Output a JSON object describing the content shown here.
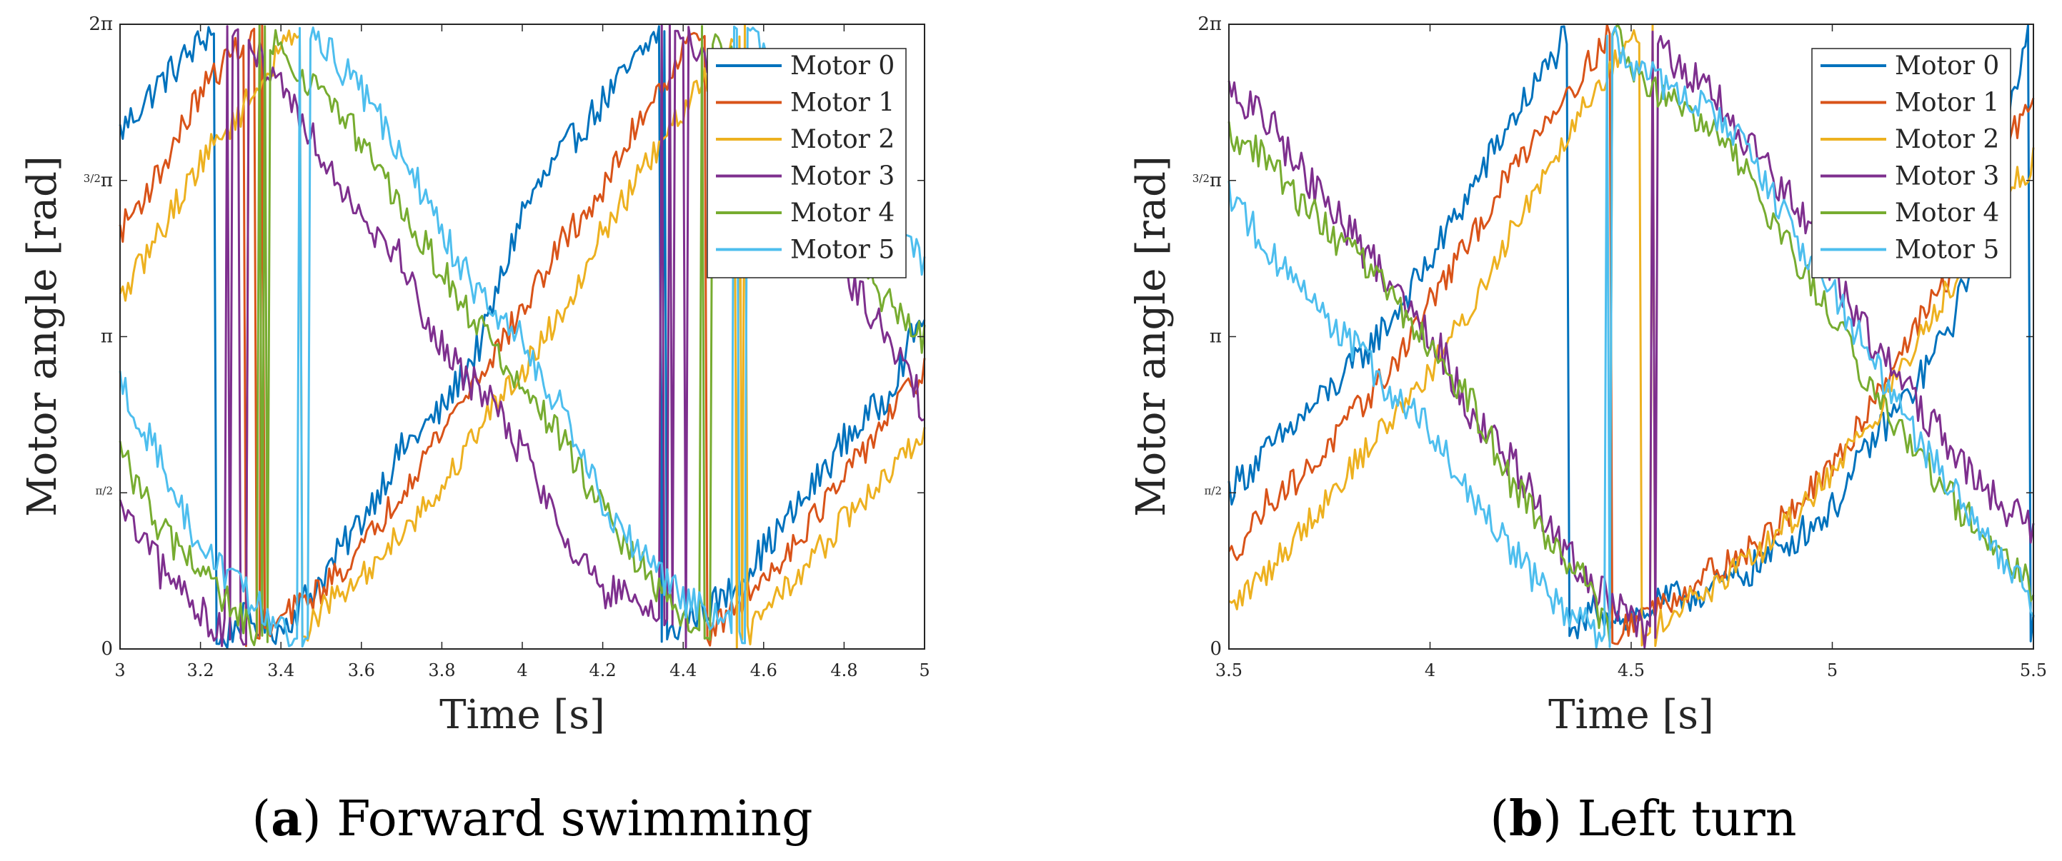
{
  "chart_data": [
    {
      "type": "line",
      "caption_letter": "a",
      "caption_text": "Forward swimming",
      "xlabel": "Time [s]",
      "ylabel": "Motor angle [rad]",
      "xlim": [
        3,
        5
      ],
      "ylim": [
        0,
        6.2832
      ],
      "x_ticks": [
        3,
        3.2,
        3.4,
        3.6,
        3.8,
        4,
        4.2,
        4.4,
        4.6,
        4.8,
        5
      ],
      "x_tick_labels": [
        "3",
        "3.2",
        "3.4",
        "3.6",
        "3.8",
        "4",
        "4.2",
        "4.4",
        "4.6",
        "4.8",
        "5"
      ],
      "y_ticks": [
        {
          "value": 0,
          "label": "0"
        },
        {
          "value": 1.5708,
          "label": "π/2"
        },
        {
          "value": 3.1416,
          "label": "π"
        },
        {
          "value": 4.7124,
          "label": "3/2π"
        },
        {
          "value": 6.2832,
          "label": "2π"
        }
      ],
      "legend_position": "top-right",
      "series": [
        {
          "name": "Motor 0",
          "color": "#0072BD",
          "phase": 2.0,
          "noise": 0.35,
          "x": [
            3.0,
            3.1,
            3.2,
            3.3,
            3.4,
            3.5,
            3.6,
            3.7,
            3.8,
            3.9,
            4.0,
            4.1,
            4.2,
            4.3,
            4.4,
            4.5,
            4.6,
            4.7,
            4.8,
            4.9,
            5.0
          ],
          "y": [
            5.2,
            5.7,
            6.1,
            0.3,
            0.2,
            0.7,
            1.3,
            2.0,
            2.4,
            3.1,
            4.4,
            5.0,
            5.5,
            6.0,
            0.3,
            0.5,
            1.0,
            1.5,
            2.1,
            2.5,
            3.4
          ]
        },
        {
          "name": "Motor 1",
          "color": "#D95319",
          "phase": 1.6,
          "noise": 0.3,
          "x": [
            3.0,
            3.1,
            3.2,
            3.3,
            3.4,
            3.5,
            3.6,
            3.7,
            3.8,
            3.9,
            4.0,
            4.1,
            4.2,
            4.3,
            4.4,
            4.5,
            4.6,
            4.7,
            4.8,
            4.9,
            5.0
          ],
          "y": [
            4.2,
            4.8,
            5.6,
            6.1,
            0.3,
            0.6,
            1.0,
            1.6,
            2.2,
            2.8,
            3.4,
            4.1,
            4.6,
            5.4,
            6.0,
            0.3,
            0.7,
            1.2,
            1.7,
            2.3,
            2.8
          ]
        },
        {
          "name": "Motor 2",
          "color": "#EDB120",
          "phase": 1.2,
          "noise": 0.3,
          "x": [
            3.0,
            3.1,
            3.2,
            3.3,
            3.4,
            3.5,
            3.6,
            3.7,
            3.8,
            3.9,
            4.0,
            4.1,
            4.2,
            4.3,
            4.4,
            4.5,
            4.6,
            4.7,
            4.8,
            4.9,
            5.0
          ],
          "y": [
            3.5,
            4.2,
            4.9,
            5.4,
            6.0,
            0.4,
            0.7,
            1.2,
            1.6,
            2.3,
            2.8,
            3.4,
            4.2,
            4.8,
            5.4,
            6.0,
            0.4,
            0.8,
            1.3,
            1.7,
            2.2
          ]
        },
        {
          "name": "Motor 3",
          "color": "#7E2F8E",
          "phase": -1.0,
          "noise": 0.4,
          "x": [
            3.0,
            3.1,
            3.2,
            3.3,
            3.4,
            3.5,
            3.6,
            3.7,
            3.8,
            3.9,
            4.0,
            4.1,
            4.2,
            4.3,
            4.4,
            4.5,
            4.6,
            4.7,
            4.8,
            4.9,
            5.0
          ],
          "y": [
            1.4,
            0.8,
            0.4,
            6.2,
            5.7,
            5.0,
            4.4,
            3.9,
            3.0,
            2.6,
            2.0,
            1.2,
            0.6,
            0.4,
            6.2,
            5.6,
            5.0,
            4.4,
            3.8,
            3.2,
            2.4
          ]
        },
        {
          "name": "Motor 4",
          "color": "#77AC30",
          "phase": -0.5,
          "noise": 0.35,
          "x": [
            3.0,
            3.1,
            3.2,
            3.3,
            3.4,
            3.5,
            3.6,
            3.7,
            3.8,
            3.9,
            4.0,
            4.1,
            4.2,
            4.3,
            4.4,
            4.5,
            4.6,
            4.7,
            4.8,
            4.9,
            5.0
          ],
          "y": [
            2.0,
            1.2,
            0.8,
            0.3,
            6.0,
            5.6,
            5.1,
            4.4,
            3.8,
            3.2,
            2.6,
            2.1,
            1.4,
            0.8,
            0.3,
            6.1,
            5.4,
            4.8,
            4.2,
            3.5,
            3.1
          ]
        },
        {
          "name": "Motor 5",
          "color": "#4DBEEE",
          "phase": 0.0,
          "noise": 0.35,
          "x": [
            3.0,
            3.1,
            3.2,
            3.3,
            3.4,
            3.5,
            3.6,
            3.7,
            3.8,
            3.9,
            4.0,
            4.1,
            4.2,
            4.3,
            4.4,
            4.5,
            4.6,
            4.7,
            4.8,
            4.9,
            5.0
          ],
          "y": [
            2.7,
            1.9,
            1.0,
            0.6,
            0.2,
            6.1,
            5.6,
            5.0,
            4.2,
            3.5,
            3.1,
            2.4,
            1.5,
            0.9,
            0.5,
            0.3,
            6.0,
            5.5,
            4.8,
            4.3,
            3.9
          ]
        }
      ]
    },
    {
      "type": "line",
      "caption_letter": "b",
      "caption_text": "Left turn",
      "xlabel": "Time [s]",
      "ylabel": "Motor angle [rad]",
      "xlim": [
        3.5,
        5.5
      ],
      "ylim": [
        0,
        6.2832
      ],
      "x_ticks": [
        3.5,
        4,
        4.5,
        5,
        5.5
      ],
      "x_tick_labels": [
        "3.5",
        "4",
        "4.5",
        "5",
        "5.5"
      ],
      "y_ticks": [
        {
          "value": 0,
          "label": "0"
        },
        {
          "value": 1.5708,
          "label": "π/2"
        },
        {
          "value": 3.1416,
          "label": "π"
        },
        {
          "value": 4.7124,
          "label": "3/2π"
        },
        {
          "value": 6.2832,
          "label": "2π"
        }
      ],
      "legend_position": "top-right",
      "series": [
        {
          "name": "Motor 0",
          "color": "#0072BD",
          "phase": 2.0,
          "noise": 0.35,
          "x": [
            3.5,
            3.6,
            3.7,
            3.8,
            3.9,
            4.0,
            4.1,
            4.2,
            4.3,
            4.4,
            4.5,
            4.6,
            4.7,
            4.8,
            4.9,
            5.0,
            5.1,
            5.2,
            5.3,
            5.4,
            5.5
          ],
          "y": [
            1.6,
            2.0,
            2.4,
            2.8,
            3.3,
            3.9,
            4.6,
            5.3,
            5.9,
            0.4,
            0.3,
            0.5,
            0.6,
            0.8,
            1.1,
            1.4,
            2.1,
            2.6,
            3.3,
            4.6,
            0.3
          ]
        },
        {
          "name": "Motor 1",
          "color": "#D95319",
          "phase": 1.6,
          "noise": 0.3,
          "x": [
            3.5,
            3.6,
            3.7,
            3.8,
            3.9,
            4.0,
            4.1,
            4.2,
            4.3,
            4.4,
            4.5,
            4.6,
            4.7,
            4.8,
            4.9,
            5.0,
            5.1,
            5.2,
            5.3,
            5.4,
            5.5
          ],
          "y": [
            0.9,
            1.5,
            1.8,
            2.3,
            2.8,
            3.5,
            4.1,
            4.8,
            5.4,
            5.9,
            0.3,
            0.5,
            0.8,
            1.0,
            1.4,
            1.8,
            2.5,
            3.2,
            3.8,
            4.8,
            5.6
          ]
        },
        {
          "name": "Motor 2",
          "color": "#EDB120",
          "phase": 1.2,
          "noise": 0.3,
          "x": [
            3.5,
            3.6,
            3.7,
            3.8,
            3.9,
            4.0,
            4.1,
            4.2,
            4.3,
            4.4,
            4.5,
            4.6,
            4.7,
            4.8,
            4.9,
            5.0,
            5.1,
            5.2,
            5.3,
            5.4,
            5.5
          ],
          "y": [
            0.4,
            0.8,
            1.3,
            1.8,
            2.3,
            2.8,
            3.4,
            4.2,
            4.9,
            5.6,
            6.1,
            0.4,
            0.6,
            0.9,
            1.3,
            1.8,
            2.3,
            3.0,
            3.7,
            4.4,
            4.9
          ]
        },
        {
          "name": "Motor 3",
          "color": "#7E2F8E",
          "phase": -1.0,
          "noise": 0.4,
          "x": [
            3.5,
            3.6,
            3.7,
            3.8,
            3.9,
            4.0,
            4.1,
            4.2,
            4.3,
            4.4,
            4.5,
            4.6,
            4.7,
            4.8,
            4.9,
            5.0,
            5.1,
            5.2,
            5.3,
            5.4,
            5.5
          ],
          "y": [
            5.6,
            5.3,
            4.7,
            4.2,
            3.7,
            3.2,
            2.4,
            1.9,
            1.2,
            0.6,
            0.4,
            5.9,
            5.6,
            5.0,
            4.5,
            3.8,
            3.1,
            2.5,
            2.0,
            1.5,
            1.2
          ]
        },
        {
          "name": "Motor 4",
          "color": "#77AC30",
          "phase": -0.5,
          "noise": 0.35,
          "x": [
            3.5,
            3.6,
            3.7,
            3.8,
            3.9,
            4.0,
            4.1,
            4.2,
            4.3,
            4.4,
            4.5,
            4.6,
            4.7,
            4.8,
            4.9,
            5.0,
            5.1,
            5.2,
            5.3,
            5.4,
            5.5
          ],
          "y": [
            5.2,
            4.9,
            4.4,
            4.0,
            3.6,
            3.0,
            2.5,
            1.7,
            1.1,
            0.6,
            5.8,
            5.5,
            5.2,
            4.7,
            4.0,
            3.3,
            2.6,
            2.0,
            1.5,
            1.0,
            0.6
          ]
        },
        {
          "name": "Motor 5",
          "color": "#4DBEEE",
          "phase": 0.0,
          "noise": 0.35,
          "x": [
            3.5,
            3.6,
            3.7,
            3.8,
            3.9,
            4.0,
            4.1,
            4.2,
            4.3,
            4.4,
            4.5,
            4.6,
            4.7,
            4.8,
            4.9,
            5.0,
            5.1,
            5.2,
            5.3,
            5.4,
            5.5
          ],
          "y": [
            4.6,
            4.0,
            3.5,
            3.1,
            2.6,
            2.2,
            1.6,
            1.0,
            0.5,
            0.2,
            5.9,
            5.6,
            5.4,
            5.0,
            4.2,
            3.6,
            2.9,
            2.2,
            1.6,
            1.0,
            0.5
          ]
        }
      ]
    }
  ]
}
